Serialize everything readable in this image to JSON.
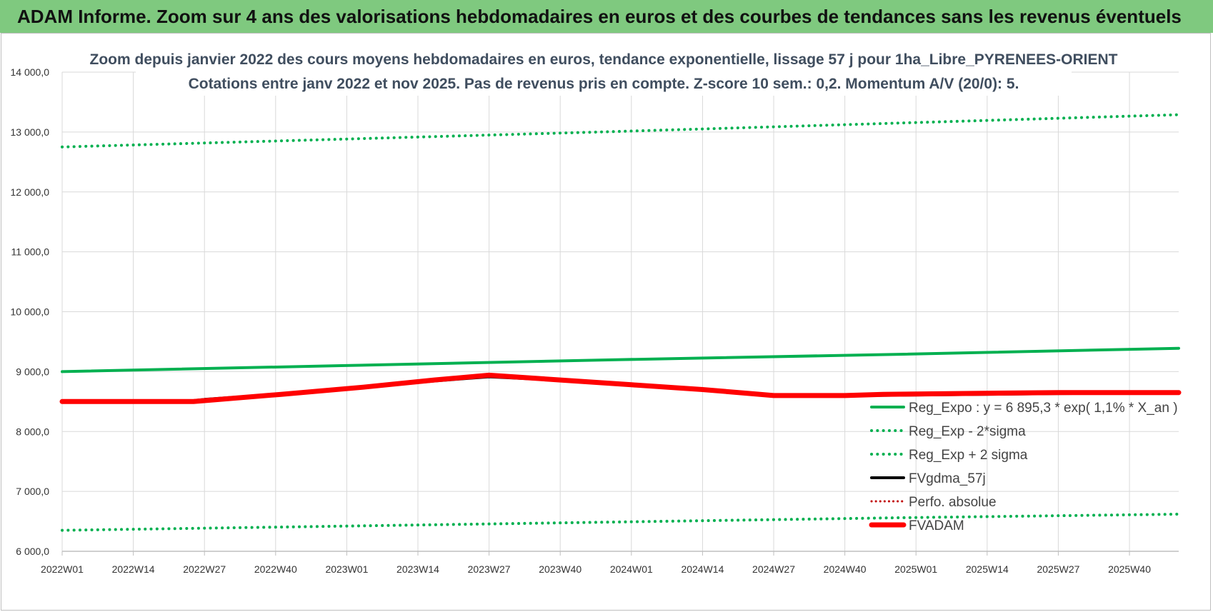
{
  "banner": {
    "title": "ADAM Informe. Zoom sur 4 ans des valorisations hebdomadaires en euros et des courbes de tendances sans les revenus éventuels"
  },
  "chart_data": {
    "type": "line",
    "title": "Zoom depuis janvier 2022 des cours moyens hebdomadaires en euros, tendance exponentielle, lissage 57 j pour 1ha_Libre_PYRENEES-ORIENT",
    "subtitle": "Cotations entre janv 2022 et nov 2025. Pas de revenus pris en compte. Z-score 10 sem.: 0,2. Momentum A/V (20/0): 5.",
    "xlabel": "",
    "ylabel": "",
    "ylim": [
      6000,
      14000
    ],
    "yticks": [
      "6 000,0",
      "7 000,0",
      "8 000,0",
      "9 000,0",
      "10 000,0",
      "11 000,0",
      "12 000,0",
      "13 000,0",
      "14 000,0"
    ],
    "x_range_weeks": [
      0,
      204
    ],
    "xticks": [
      {
        "label": "2022W01",
        "week": 0
      },
      {
        "label": "2022W14",
        "week": 13
      },
      {
        "label": "2022W27",
        "week": 26
      },
      {
        "label": "2022W40",
        "week": 39
      },
      {
        "label": "2023W01",
        "week": 52
      },
      {
        "label": "2023W14",
        "week": 65
      },
      {
        "label": "2023W27",
        "week": 78
      },
      {
        "label": "2023W40",
        "week": 91
      },
      {
        "label": "2024W01",
        "week": 104
      },
      {
        "label": "2024W14",
        "week": 117
      },
      {
        "label": "2024W27",
        "week": 130
      },
      {
        "label": "2024W40",
        "week": 143
      },
      {
        "label": "2025W01",
        "week": 156
      },
      {
        "label": "2025W14",
        "week": 169
      },
      {
        "label": "2025W27",
        "week": 182
      },
      {
        "label": "2025W40",
        "week": 195
      }
    ],
    "grid": true,
    "legend_position": "bottom-right",
    "series": [
      {
        "name": "Reg_Expo : y = 6 895,3 * exp( 1,1% *  X_an )",
        "color": "#00b050",
        "style": "solid",
        "points": [
          [
            0,
            9000
          ],
          [
            51,
            9100
          ],
          [
            102,
            9200
          ],
          [
            153,
            9290
          ],
          [
            204,
            9390
          ]
        ]
      },
      {
        "name": "Reg_Exp - 2*sigma",
        "color": "#00b050",
        "style": "dotted",
        "points": [
          [
            0,
            6350
          ],
          [
            51,
            6420
          ],
          [
            102,
            6490
          ],
          [
            153,
            6560
          ],
          [
            204,
            6620
          ]
        ]
      },
      {
        "name": "Reg_Exp + 2 sigma",
        "color": "#00b050",
        "style": "dotted",
        "points": [
          [
            0,
            12750
          ],
          [
            51,
            12880
          ],
          [
            102,
            13010
          ],
          [
            153,
            13150
          ],
          [
            204,
            13290
          ]
        ]
      },
      {
        "name": "FVgdma_57j",
        "color": "#000000",
        "style": "solid",
        "points": [
          [
            0,
            8500
          ],
          [
            24,
            8510
          ],
          [
            26,
            8530
          ],
          [
            40,
            8620
          ],
          [
            55,
            8740
          ],
          [
            68,
            8850
          ],
          [
            78,
            8920
          ],
          [
            91,
            8860
          ],
          [
            104,
            8780
          ],
          [
            117,
            8700
          ],
          [
            125,
            8640
          ],
          [
            130,
            8610
          ],
          [
            143,
            8600
          ],
          [
            150,
            8610
          ],
          [
            182,
            8640
          ],
          [
            204,
            8650
          ]
        ]
      },
      {
        "name": "Perfo. absolue",
        "color": "#c00000",
        "style": "dotted",
        "points": [
          [
            0,
            8500
          ],
          [
            24,
            8500
          ],
          [
            28,
            8530
          ],
          [
            40,
            8620
          ],
          [
            55,
            8740
          ],
          [
            68,
            8860
          ],
          [
            78,
            8940
          ],
          [
            91,
            8860
          ],
          [
            104,
            8780
          ],
          [
            117,
            8700
          ],
          [
            125,
            8640
          ],
          [
            130,
            8600
          ],
          [
            143,
            8600
          ],
          [
            150,
            8620
          ],
          [
            182,
            8650
          ],
          [
            204,
            8650
          ]
        ]
      },
      {
        "name": "FVADAM",
        "color": "#ff0000",
        "style": "solid-thick",
        "points": [
          [
            0,
            8500
          ],
          [
            24,
            8500
          ],
          [
            28,
            8530
          ],
          [
            40,
            8620
          ],
          [
            55,
            8740
          ],
          [
            68,
            8860
          ],
          [
            78,
            8940
          ],
          [
            91,
            8860
          ],
          [
            104,
            8780
          ],
          [
            117,
            8700
          ],
          [
            125,
            8640
          ],
          [
            130,
            8600
          ],
          [
            143,
            8600
          ],
          [
            150,
            8620
          ],
          [
            182,
            8650
          ],
          [
            204,
            8650
          ]
        ]
      }
    ]
  }
}
